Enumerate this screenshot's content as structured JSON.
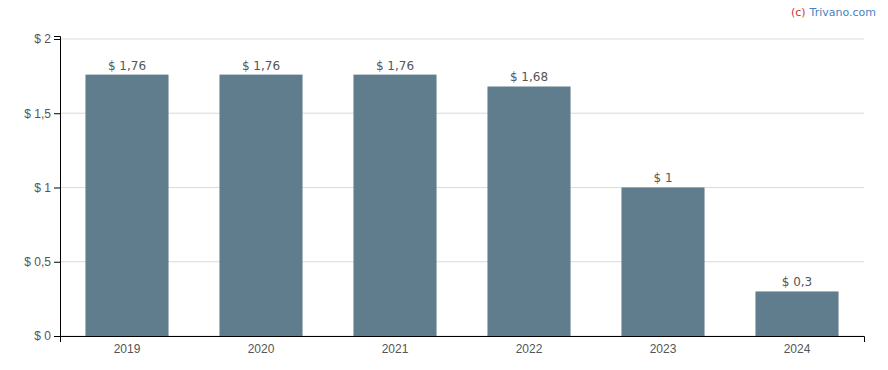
{
  "chart_data": {
    "type": "bar",
    "categories": [
      "2019",
      "2020",
      "2021",
      "2022",
      "2023",
      "2024"
    ],
    "values": [
      1.76,
      1.76,
      1.76,
      1.68,
      1.0,
      0.3
    ],
    "value_labels": [
      "$ 1,76",
      "$ 1,76",
      "$ 1,76",
      "$ 1,68",
      "$ 1",
      "$ 0,3"
    ],
    "data_labels": true,
    "color": "#5f7d8c",
    "ylim": [
      0,
      2.02
    ],
    "yticks": [
      {
        "value": 0,
        "label": "$ 0"
      },
      {
        "value": 0.5,
        "label": "$ 0,5"
      },
      {
        "value": 1.0,
        "label": "$ 1"
      },
      {
        "value": 1.5,
        "label": "$ 1,5"
      },
      {
        "value": 2.0,
        "label": "$ 2"
      }
    ],
    "grid": true,
    "annotations": [
      {
        "text": "(c)",
        "color": "#cc3333"
      },
      {
        "text": "Trivano.com",
        "color": "#4a7fc1"
      }
    ]
  }
}
